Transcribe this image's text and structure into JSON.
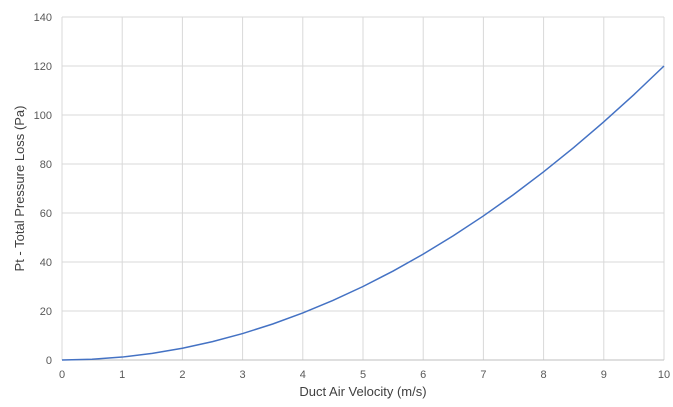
{
  "chart_data": {
    "type": "line",
    "title": "",
    "xlabel": "Duct Air Velocity (m/s)",
    "ylabel": "Pt - Total Pressure Loss (Pa)",
    "xlim": [
      0,
      10
    ],
    "ylim": [
      0,
      140
    ],
    "x_ticks": [
      "0",
      "1",
      "2",
      "3",
      "4",
      "5",
      "6",
      "7",
      "8",
      "9",
      "10"
    ],
    "y_ticks": [
      "0",
      "20",
      "40",
      "60",
      "80",
      "100",
      "120",
      "140"
    ],
    "grid": true,
    "legend": "none",
    "series": [
      {
        "color": "#4472c4",
        "x": [
          0,
          0.5,
          1,
          1.5,
          2,
          2.5,
          3,
          3.5,
          4,
          4.5,
          5,
          5.5,
          6,
          6.5,
          7,
          7.5,
          8,
          8.5,
          9,
          9.5,
          10
        ],
        "y": [
          0,
          0.3,
          1.2,
          2.7,
          4.8,
          7.5,
          10.8,
          14.7,
          19.2,
          24.3,
          30,
          36.3,
          43.2,
          50.7,
          58.8,
          67.5,
          76.8,
          86.7,
          97.2,
          108.3,
          120
        ]
      }
    ]
  }
}
